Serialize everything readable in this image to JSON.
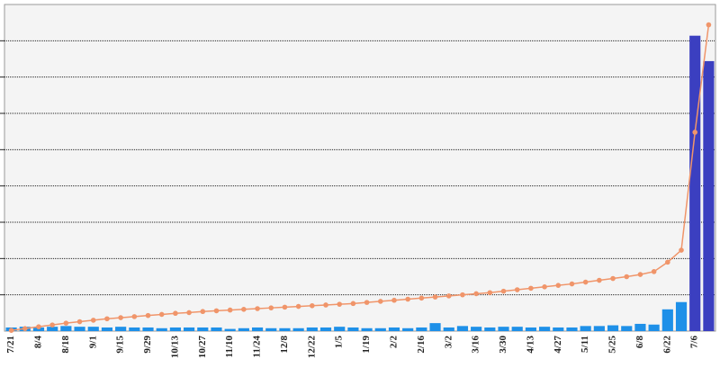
{
  "chart_data": {
    "type": "bar",
    "categories": [
      "7/21",
      null,
      "8/4",
      null,
      "8/18",
      null,
      "9/1",
      null,
      "9/15",
      null,
      "9/29",
      null,
      "10/13",
      null,
      "10/27",
      null,
      "11/10",
      null,
      "11/24",
      null,
      "12/8",
      null,
      "12/22",
      null,
      "1/5",
      null,
      "1/19",
      null,
      "2/2",
      null,
      "2/16",
      null,
      "3/2",
      null,
      "3/16",
      null,
      "3/30",
      null,
      "4/13",
      null,
      "4/27",
      null,
      "5/11",
      null,
      "5/25",
      null,
      "6/8",
      null,
      "6/22",
      null,
      "7/6",
      null
    ],
    "series": [
      {
        "type": "bar",
        "values": [
          0.1,
          0.12,
          0.1,
          0.12,
          0.14,
          0.12,
          0.12,
          0.1,
          0.12,
          0.1,
          0.1,
          0.08,
          0.1,
          0.1,
          0.1,
          0.1,
          0.06,
          0.08,
          0.1,
          0.08,
          0.08,
          0.08,
          0.1,
          0.1,
          0.12,
          0.1,
          0.08,
          0.08,
          0.1,
          0.08,
          0.1,
          0.22,
          0.1,
          0.14,
          0.12,
          0.1,
          0.12,
          0.12,
          0.1,
          0.12,
          0.1,
          0.1,
          0.14,
          0.14,
          0.16,
          0.14,
          0.2,
          0.18,
          0.6,
          0.8,
          8.14,
          7.44
        ],
        "colors": [
          "#1e90e8",
          "#1e90e8",
          "#1e90e8",
          "#1e90e8",
          "#1e90e8",
          "#1e90e8",
          "#1e90e8",
          "#1e90e8",
          "#1e90e8",
          "#1e90e8",
          "#1e90e8",
          "#1e90e8",
          "#1e90e8",
          "#1e90e8",
          "#1e90e8",
          "#1e90e8",
          "#1e90e8",
          "#1e90e8",
          "#1e90e8",
          "#1e90e8",
          "#1e90e8",
          "#1e90e8",
          "#1e90e8",
          "#1e90e8",
          "#1e90e8",
          "#1e90e8",
          "#1e90e8",
          "#1e90e8",
          "#1e90e8",
          "#1e90e8",
          "#1e90e8",
          "#1e90e8",
          "#1e90e8",
          "#1e90e8",
          "#1e90e8",
          "#1e90e8",
          "#1e90e8",
          "#1e90e8",
          "#1e90e8",
          "#1e90e8",
          "#1e90e8",
          "#1e90e8",
          "#1e90e8",
          "#1e90e8",
          "#1e90e8",
          "#1e90e8",
          "#1e90e8",
          "#1e90e8",
          "#1e90e8",
          "#1e90e8",
          "#3b3fc0",
          "#3b3fc0"
        ]
      },
      {
        "type": "line",
        "color": "#f0956a",
        "values": [
          0.02,
          0.07,
          0.12,
          0.17,
          0.22,
          0.26,
          0.3,
          0.34,
          0.37,
          0.4,
          0.43,
          0.46,
          0.49,
          0.51,
          0.54,
          0.56,
          0.58,
          0.6,
          0.62,
          0.64,
          0.66,
          0.68,
          0.7,
          0.72,
          0.74,
          0.76,
          0.79,
          0.82,
          0.85,
          0.88,
          0.91,
          0.94,
          0.97,
          1.0,
          1.03,
          1.06,
          1.1,
          1.14,
          1.18,
          1.22,
          1.26,
          1.3,
          1.35,
          1.4,
          1.45,
          1.5,
          1.56,
          1.64,
          1.9,
          2.23,
          5.48,
          8.44
        ]
      }
    ],
    "ylim": [
      0,
      9
    ],
    "yticks": [
      1,
      2,
      3,
      4,
      5,
      6,
      7,
      8
    ],
    "grid": true
  }
}
